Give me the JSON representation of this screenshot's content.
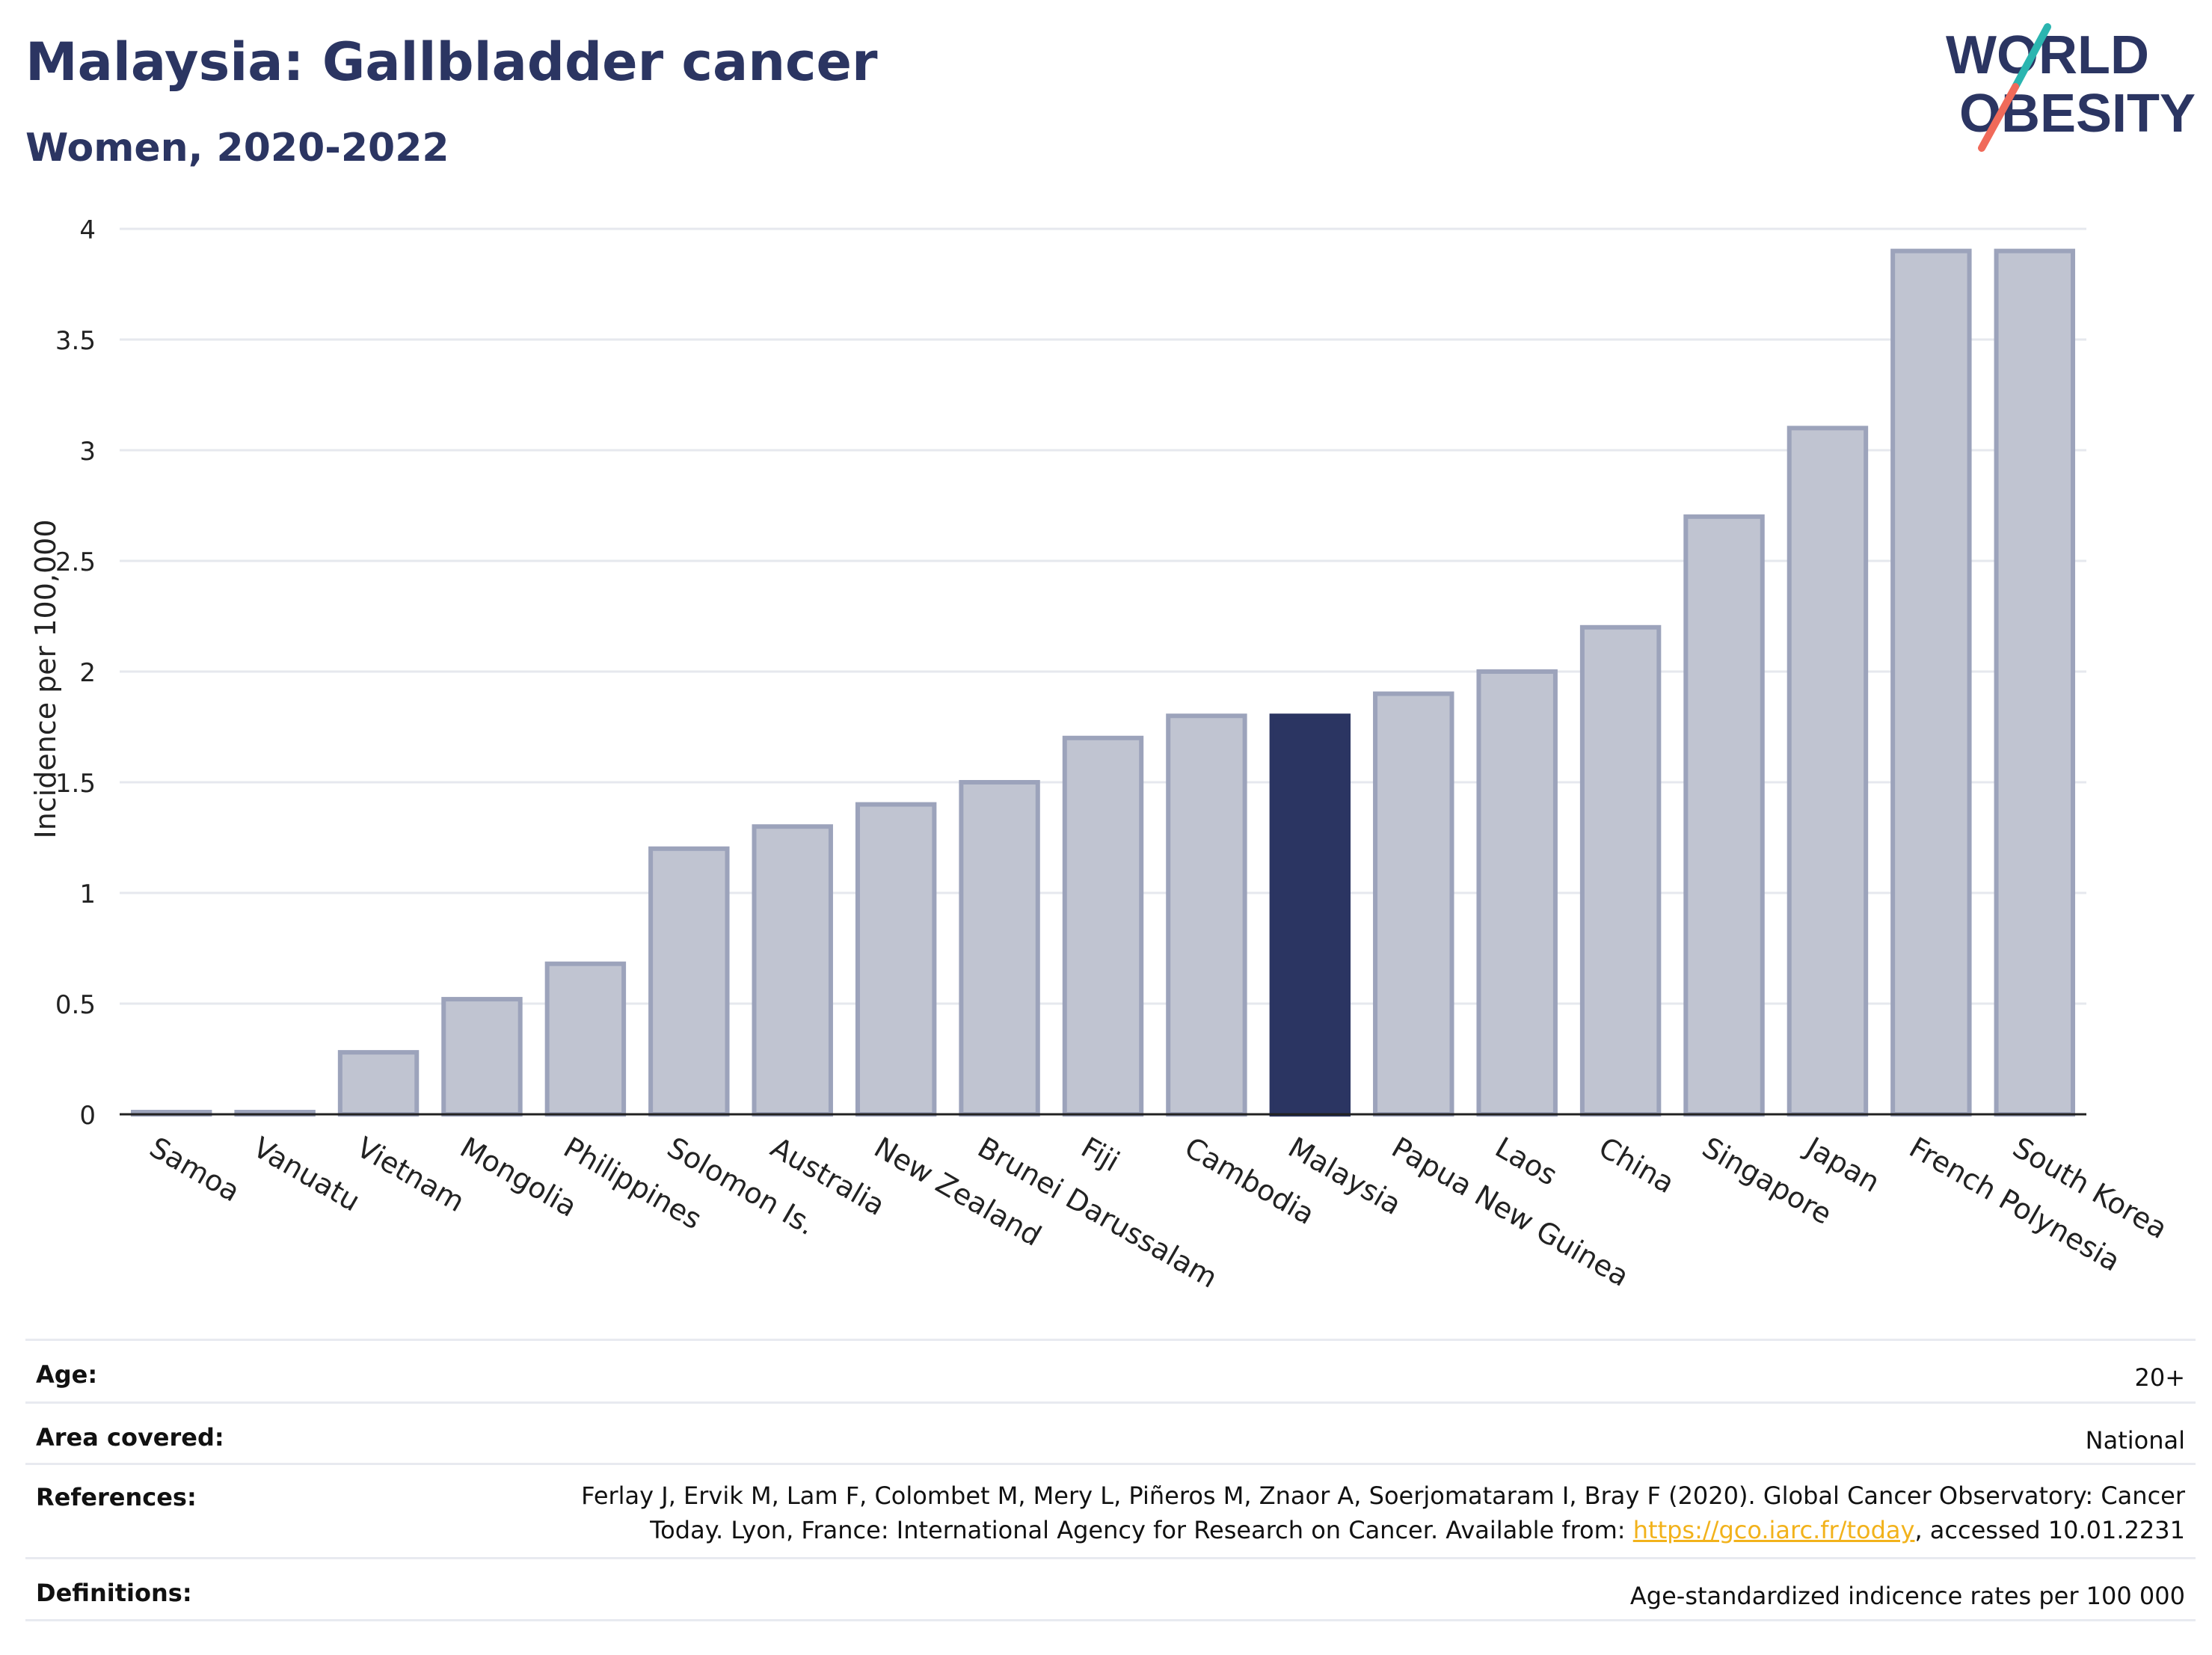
{
  "header": {
    "title": "Malaysia: Gallbladder cancer",
    "subtitle": "Women, 2020-2022"
  },
  "logo": {
    "line1": "WORLD",
    "line2": "OBESITY",
    "colors": {
      "text": "#2b3562",
      "slash_top": "#2bb5b0",
      "slash_bottom": "#f06a5a"
    }
  },
  "colors": {
    "bar_default": "#c0c4d1",
    "bar_default_stroke": "#9ca3bb",
    "bar_highlight": "#2b3562",
    "grid": "#e6e8ee",
    "axis": "#222222"
  },
  "chart_data": {
    "type": "bar",
    "ylabel": "Incidence per 100,000",
    "ylim": [
      0,
      4
    ],
    "yticks": [
      0,
      0.5,
      1,
      1.5,
      2,
      2.5,
      3,
      3.5,
      4
    ],
    "ytick_labels": [
      "0",
      "0.5",
      "1",
      "1.5",
      "2",
      "2.5",
      "3",
      "3.5",
      "4"
    ],
    "grid": true,
    "highlight": "Malaysia",
    "categories": [
      "Samoa",
      "Vanuatu",
      "Vietnam",
      "Mongolia",
      "Philippines",
      "Solomon Is.",
      "Australia",
      "New Zealand",
      "Brunei Darussalam",
      "Fiji",
      "Cambodia",
      "Malaysia",
      "Papua New Guinea",
      "Laos",
      "China",
      "Singapore",
      "Japan",
      "French Polynesia",
      "South Korea"
    ],
    "values": [
      0.01,
      0.01,
      0.28,
      0.52,
      0.68,
      1.2,
      1.3,
      1.4,
      1.5,
      1.7,
      1.8,
      1.8,
      1.9,
      2.0,
      2.2,
      2.7,
      3.1,
      3.9,
      3.9
    ]
  },
  "info": {
    "age_label": "Age:",
    "age_value": "20+",
    "area_label": "Area covered:",
    "area_value": "National",
    "references_label": "References:",
    "references_text_1": "Ferlay J, Ervik M, Lam F, Colombet M, Mery L, Piñeros M, Znaor A, Soerjomataram I, Bray F (2020). Global Cancer Observatory: Cancer Today. Lyon, France: International Agency for Research on Cancer. Available from: ",
    "references_link": "https://gco.iarc.fr/today",
    "references_text_2": ", accessed 10.01.2231",
    "definitions_label": "Definitions:",
    "definitions_value": "Age-standardized indicence rates per 100 000"
  }
}
